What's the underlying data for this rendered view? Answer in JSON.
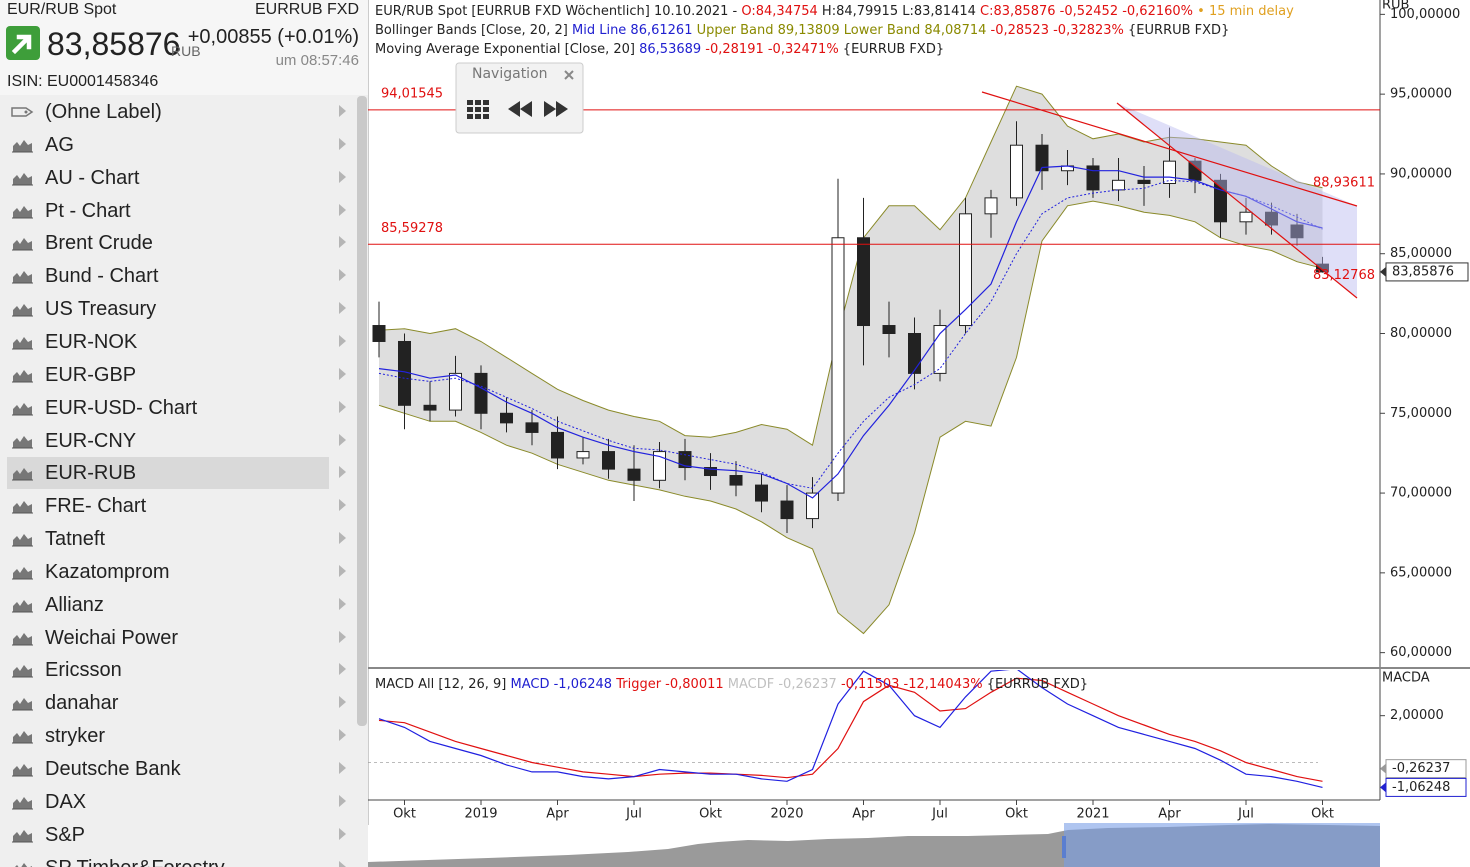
{
  "quote": {
    "name": "EUR/RUB Spot",
    "exchange": "EURRUB FXD",
    "price": "83,85876",
    "currency": "RUB",
    "change": "+0,00855 (+0.01%)",
    "time": "um 08:57:46",
    "isin": "ISIN: EU0001458346"
  },
  "watchlist": {
    "items": [
      "(Ohne Label)",
      "AG",
      "AU - Chart",
      "Pt - Chart",
      "Brent Crude",
      "Bund - Chart",
      "US Treasury",
      "EUR-NOK",
      "EUR-GBP",
      "EUR-USD- Chart",
      "EUR-CNY",
      "EUR-RUB",
      "FRE- Chart",
      "Tatneft",
      "Kazatomprom",
      "Allianz",
      "Weichai Power",
      "Ericsson",
      "danahar",
      "stryker",
      "Deutsche Bank",
      "DAX",
      "S&P",
      "SP Timber&Forestry"
    ],
    "selected": 11
  },
  "navigation": {
    "title": "Navigation"
  },
  "chart_data": [
    {
      "type": "candlestick",
      "header_lines": [
        [
          {
            "text": "EUR/RUB Spot [EURRUB FXD Wöchentlich] 10.10.2021 - ",
            "color": "#222222"
          },
          {
            "text": "O:84,34754",
            "color": "#e01010"
          },
          {
            "text": " H:84,79915 L:83,81414 ",
            "color": "#222222"
          },
          {
            "text": "C:83,85876 -0,52452 -0,62160%",
            "color": "#e01010"
          },
          {
            "text": " • 15 min delay",
            "color": "#e0a020"
          }
        ],
        [
          {
            "text": "Bollinger Bands [Close, 20, 2] ",
            "color": "#222222"
          },
          {
            "text": "Mid Line 86,61261",
            "color": "#2020d0"
          },
          {
            "text": " Upper Band 89,13809 Lower Band 84,08714",
            "color": "#8a8a00"
          },
          {
            "text": " -0,28523 -0,32823%",
            "color": "#e01010"
          },
          {
            "text": " {EURRUB FXD}",
            "color": "#222222"
          }
        ],
        [
          {
            "text": "Moving Average Exponential [Close, 20] ",
            "color": "#222222"
          },
          {
            "text": "86,53689",
            "color": "#2020d0"
          },
          {
            "text": " -0,28191 -0,32471%",
            "color": "#e01010"
          },
          {
            "text": " {EURRUB FXD}",
            "color": "#222222"
          }
        ]
      ],
      "y_label": "RUB",
      "categories": [
        null,
        "Okt",
        null,
        null,
        "2019",
        null,
        null,
        "Apr",
        null,
        null,
        "Jul",
        null,
        null,
        "Okt",
        null,
        null,
        "2020",
        null,
        null,
        "Apr",
        null,
        null,
        "Jul",
        null,
        null,
        "Okt",
        null,
        null,
        "2021",
        null,
        null,
        "Apr",
        null,
        null,
        "Jul",
        null,
        null,
        "Okt"
      ],
      "open": [
        80.5,
        79.5,
        75.5,
        75.2,
        77.5,
        75.0,
        74.4,
        73.8,
        72.2,
        72.6,
        71.5,
        70.8,
        72.6,
        71.6,
        71.1,
        70.5,
        69.5,
        68.4,
        70.0,
        86.0,
        80.5,
        80.0,
        77.5,
        80.5,
        87.5,
        88.5,
        91.8,
        90.2,
        90.5,
        89.0,
        89.6,
        89.4,
        90.8,
        89.6,
        87.0,
        87.6,
        86.8,
        84.34754
      ],
      "high": [
        82.0,
        80.0,
        77.0,
        78.6,
        78.0,
        76.0,
        75.2,
        74.8,
        73.5,
        73.4,
        73.0,
        73.2,
        73.4,
        72.5,
        72.0,
        71.2,
        70.5,
        71.0,
        89.7,
        88.5,
        82.0,
        81.0,
        81.5,
        88.5,
        89.0,
        93.3,
        92.5,
        91.5,
        91.0,
        91.0,
        90.5,
        92.9,
        91.0,
        90.0,
        88.5,
        88.2,
        87.5,
        84.79915
      ],
      "low": [
        78.5,
        74.0,
        74.5,
        74.8,
        74.0,
        73.8,
        73.0,
        71.5,
        71.8,
        70.9,
        69.5,
        70.3,
        70.8,
        70.2,
        69.8,
        68.8,
        67.5,
        67.8,
        69.5,
        78.0,
        78.5,
        76.5,
        77.0,
        80.0,
        86.0,
        88.0,
        89.0,
        89.3,
        88.5,
        88.3,
        88.0,
        88.5,
        88.8,
        86.0,
        86.2,
        86.2,
        85.5,
        83.81414
      ],
      "close": [
        79.5,
        75.5,
        75.2,
        77.5,
        75.0,
        74.4,
        73.8,
        72.2,
        72.6,
        71.5,
        70.8,
        72.6,
        71.6,
        71.1,
        70.5,
        69.5,
        68.4,
        70.0,
        86.0,
        80.5,
        80.0,
        77.5,
        80.5,
        87.5,
        88.5,
        91.8,
        90.2,
        90.5,
        89.0,
        89.6,
        89.4,
        90.8,
        89.6,
        87.0,
        87.6,
        86.8,
        86.0,
        83.85876
      ],
      "bands": {
        "upper": [
          80.2,
          80.3,
          80.0,
          80.3,
          79.5,
          78.5,
          77.5,
          76.5,
          75.8,
          75.2,
          74.8,
          74.5,
          73.6,
          73.5,
          73.8,
          74.3,
          74.0,
          73.0,
          80.0,
          86.0,
          88.0,
          88.0,
          86.5,
          88.5,
          92.0,
          95.5,
          95.0,
          93.0,
          92.2,
          92.5,
          92.0,
          92.3,
          92.2,
          92.0,
          91.8,
          90.5,
          89.5,
          89.13809
        ],
        "lower": [
          75.5,
          75.0,
          74.5,
          74.5,
          73.8,
          73.0,
          72.5,
          71.8,
          71.3,
          70.8,
          70.5,
          70.2,
          69.8,
          69.5,
          69.0,
          68.2,
          67.2,
          66.5,
          62.5,
          61.2,
          63.0,
          67.5,
          73.5,
          74.5,
          74.2,
          78.5,
          85.8,
          88.0,
          88.3,
          88.0,
          87.6,
          87.4,
          87.0,
          86.0,
          85.5,
          85.2,
          84.5,
          84.08714
        ],
        "mid": [
          77.8,
          77.6,
          77.2,
          77.4,
          76.6,
          75.7,
          75.0,
          74.1,
          73.5,
          73.0,
          72.6,
          72.3,
          71.7,
          71.5,
          71.4,
          71.2,
          70.6,
          69.7,
          71.2,
          73.6,
          75.5,
          77.7,
          80.0,
          81.5,
          83.1,
          87.0,
          90.4,
          90.5,
          90.2,
          90.2,
          89.8,
          89.8,
          89.6,
          89.0,
          88.6,
          87.8,
          87.0,
          86.61261
        ]
      },
      "ema": [
        77.5,
        77.2,
        77.0,
        77.2,
        76.7,
        76.0,
        75.3,
        74.5,
        73.9,
        73.3,
        72.8,
        72.7,
        72.4,
        72.1,
        71.8,
        71.3,
        70.6,
        70.3,
        72.5,
        74.5,
        76.0,
        76.8,
        77.8,
        80.0,
        82.0,
        85.0,
        87.5,
        88.5,
        88.8,
        89.0,
        89.1,
        89.6,
        89.5,
        89.0,
        88.6,
        88.0,
        87.3,
        86.53689
      ],
      "colors": {
        "band_line": "#8a8a2a",
        "band_fill": "#dedede",
        "mid": "#2222dd",
        "ema": "#2222dd",
        "up": "#ffffff",
        "down": "#222222",
        "hline": "#e01010"
      },
      "ylim": [
        59.1,
        100.9
      ],
      "yticks": [
        {
          "value": 60,
          "label": "60,00000"
        },
        {
          "value": 65,
          "label": "65,00000"
        },
        {
          "value": 70,
          "label": "70,00000"
        },
        {
          "value": 75,
          "label": "75,00000"
        },
        {
          "value": 80,
          "label": "80,00000"
        },
        {
          "value": 85,
          "label": "85,00000"
        },
        {
          "value": 90,
          "label": "90,00000"
        },
        {
          "value": 95,
          "label": "95,00000"
        },
        {
          "value": 100,
          "label": "100,00000"
        }
      ],
      "hlines": [
        {
          "value": 94.01545,
          "label": "94,01545"
        },
        {
          "value": 85.59278,
          "label": "85,59278"
        }
      ],
      "trend_labels": [
        {
          "value": 88.93611,
          "label": "88,93611"
        },
        {
          "value": 83.12768,
          "label": "83,12768"
        }
      ],
      "last_label": {
        "value": 83.85876,
        "label": "83,85876"
      }
    },
    {
      "type": "line",
      "header_line": [
        {
          "text": "MACD All [12, 26, 9] ",
          "color": "#222222"
        },
        {
          "text": "MACD -1,06248",
          "color": "#2020d0"
        },
        {
          "text": " Trigger -0,80011",
          "color": "#e01010"
        },
        {
          "text": " MACDF -0,26237",
          "color": "#c0c0c0"
        },
        {
          "text": " -0,11503 -12,14043%",
          "color": "#e01010"
        },
        {
          "text": " {EURRUB FXD}",
          "color": "#222222"
        }
      ],
      "y_label": "MACDA",
      "macd": [
        1.87,
        1.5,
        0.9,
        0.6,
        0.3,
        -0.1,
        -0.4,
        -0.4,
        -0.6,
        -0.7,
        -0.6,
        -0.3,
        -0.4,
        -0.5,
        -0.5,
        -0.7,
        -0.8,
        -0.3,
        2.5,
        3.9,
        3.3,
        2.0,
        1.5,
        2.8,
        3.9,
        4.0,
        3.2,
        2.5,
        2.0,
        1.5,
        1.2,
        0.9,
        0.6,
        0.1,
        -0.5,
        -0.6,
        -0.8,
        -1.06248
      ],
      "trigger": [
        1.8,
        1.7,
        1.3,
        0.9,
        0.6,
        0.3,
        0.0,
        -0.2,
        -0.4,
        -0.5,
        -0.6,
        -0.5,
        -0.45,
        -0.45,
        -0.5,
        -0.55,
        -0.65,
        -0.5,
        0.6,
        2.6,
        3.3,
        3.0,
        2.2,
        2.3,
        3.0,
        3.6,
        3.5,
        3.0,
        2.5,
        2.0,
        1.6,
        1.2,
        0.9,
        0.5,
        0.0,
        -0.3,
        -0.6,
        -0.80011
      ],
      "colors": {
        "macd": "#2020e0",
        "trigger": "#e01010"
      },
      "ylim": [
        -1.6,
        3.95
      ],
      "yticks": [
        {
          "value": 2,
          "label": "2,00000"
        }
      ],
      "last_labels": [
        {
          "value": -0.26237,
          "label": "-0,26237",
          "color": "#999999"
        },
        {
          "value": -1.06248,
          "label": "-1,06248",
          "color": "#2020d0"
        }
      ]
    }
  ]
}
